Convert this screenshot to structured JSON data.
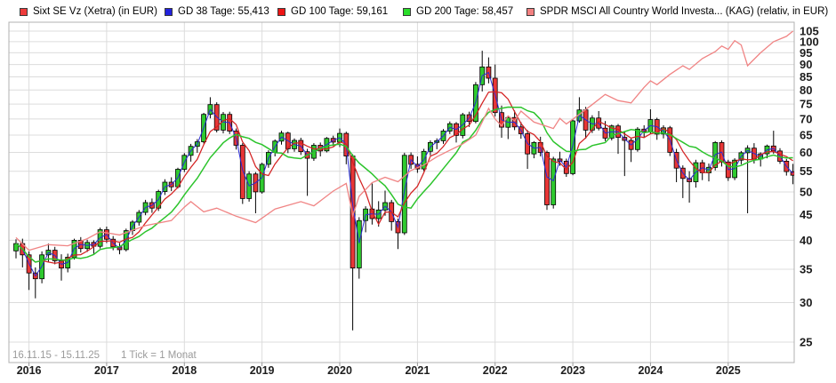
{
  "legend": {
    "items": [
      {
        "label": "Sixt SE Vz (Xetra) (in EUR)",
        "swatch_fill": "#ee3b3b",
        "swatch_border": "#3a3a3a"
      },
      {
        "label": "GD 38 Tage: 55,413",
        "swatch_fill": "#2222dd",
        "swatch_border": "#3a3a3a"
      },
      {
        "label": "GD 100 Tage: 59,161",
        "swatch_fill": "#ee1515",
        "swatch_border": "#3a3a3a"
      },
      {
        "label": "GD 200 Tage: 58,457",
        "swatch_fill": "#2add2a",
        "swatch_border": "#3a3a3a"
      },
      {
        "label": "SPDR MSCI All Country World Investa... (KAG) (relativ, in EUR)",
        "swatch_fill": "#f28080",
        "swatch_border": "#3a3a3a"
      }
    ]
  },
  "footer": {
    "range_text": "16.11.15 - 15.11.25",
    "tick_text": "1 Tick = 1 Monat"
  },
  "chart_data": {
    "type": "candlestick",
    "title": "Sixt SE Vz (Xetra) (in EUR)",
    "scale": "log",
    "x_unit": "1 candle = 1 month",
    "period_start": "2015-11",
    "period_end": "2025-11",
    "grid": true,
    "y_axis_side": "right",
    "y_ticks": [
      25,
      30,
      35,
      40,
      45,
      50,
      55,
      60,
      65,
      70,
      75,
      80,
      85,
      90,
      95,
      100,
      105
    ],
    "ylim": [
      24.5,
      107
    ],
    "x_ticks": [
      {
        "label": "2016",
        "month_index": 2
      },
      {
        "label": "2017",
        "month_index": 14
      },
      {
        "label": "2018",
        "month_index": 26
      },
      {
        "label": "2019",
        "month_index": 38
      },
      {
        "label": "2020",
        "month_index": 50
      },
      {
        "label": "2021",
        "month_index": 62
      },
      {
        "label": "2022",
        "month_index": 74
      },
      {
        "label": "2023",
        "month_index": 86
      },
      {
        "label": "2024",
        "month_index": 98
      },
      {
        "label": "2025",
        "month_index": 110
      }
    ],
    "candles_ohlc": [
      [
        38.1,
        40.2,
        36.8,
        39.4
      ],
      [
        39.4,
        40.3,
        35.3,
        37.4
      ],
      [
        37.4,
        38.0,
        31.8,
        34.4
      ],
      [
        34.4,
        35.3,
        30.6,
        33.5
      ],
      [
        33.5,
        38.0,
        32.8,
        37.4
      ],
      [
        37.4,
        39.4,
        36.2,
        38.2
      ],
      [
        38.2,
        38.8,
        35.8,
        36.4
      ],
      [
        36.4,
        37.5,
        33.2,
        35.2
      ],
      [
        35.2,
        37.6,
        34.5,
        37.0
      ],
      [
        37.0,
        40.3,
        36.6,
        40.0
      ],
      [
        40.0,
        40.6,
        37.8,
        38.5
      ],
      [
        38.5,
        40.1,
        37.9,
        39.6
      ],
      [
        39.6,
        40.0,
        37.6,
        38.9
      ],
      [
        38.9,
        42.4,
        38.5,
        42.0
      ],
      [
        42.0,
        42.6,
        39.5,
        40.2
      ],
      [
        40.2,
        40.8,
        38.2,
        38.8
      ],
      [
        38.8,
        39.5,
        37.5,
        38.3
      ],
      [
        38.3,
        42.2,
        38.0,
        41.8
      ],
      [
        41.8,
        43.9,
        41.0,
        43.5
      ],
      [
        43.5,
        46.0,
        42.8,
        45.5
      ],
      [
        45.5,
        48.2,
        44.9,
        47.6
      ],
      [
        47.6,
        48.5,
        45.4,
        46.4
      ],
      [
        46.4,
        50.5,
        45.8,
        50.1
      ],
      [
        50.1,
        53.0,
        49.3,
        52.3
      ],
      [
        52.3,
        53.5,
        50.2,
        51.2
      ],
      [
        51.2,
        55.9,
        50.8,
        55.5
      ],
      [
        55.5,
        59.8,
        54.8,
        59.2
      ],
      [
        59.2,
        62.4,
        57.5,
        61.7
      ],
      [
        61.7,
        63.8,
        59.9,
        63.0
      ],
      [
        63.0,
        72.0,
        62.5,
        71.5
      ],
      [
        71.5,
        77.4,
        70.2,
        74.8
      ],
      [
        74.8,
        75.6,
        65.8,
        66.5
      ],
      [
        66.5,
        72.3,
        65.5,
        71.5
      ],
      [
        71.5,
        72.4,
        65.3,
        66.2
      ],
      [
        66.2,
        67.0,
        60.8,
        62.0
      ],
      [
        62.0,
        62.6,
        47.3,
        48.5
      ],
      [
        48.5,
        55.0,
        47.8,
        54.3
      ],
      [
        54.3,
        54.8,
        45.3,
        50.0
      ],
      [
        50.0,
        57.2,
        49.6,
        56.8
      ],
      [
        56.8,
        60.6,
        55.9,
        60.0
      ],
      [
        60.0,
        63.7,
        58.9,
        63.2
      ],
      [
        63.2,
        66.3,
        62.2,
        65.6
      ],
      [
        65.6,
        66.0,
        59.8,
        61.0
      ],
      [
        61.0,
        64.0,
        60.2,
        63.4
      ],
      [
        63.4,
        64.2,
        59.3,
        60.2
      ],
      [
        60.2,
        61.0,
        49.1,
        58.4
      ],
      [
        58.4,
        62.6,
        57.7,
        62.0
      ],
      [
        62.0,
        62.8,
        58.9,
        60.4
      ],
      [
        60.4,
        64.4,
        60.0,
        64.0
      ],
      [
        64.0,
        64.8,
        61.8,
        62.9
      ],
      [
        62.9,
        67.0,
        61.5,
        65.5
      ],
      [
        65.5,
        66.0,
        56.8,
        59.0
      ],
      [
        59.0,
        59.5,
        26.4,
        35.2
      ],
      [
        35.2,
        44.5,
        33.5,
        43.8
      ],
      [
        43.8,
        46.8,
        41.5,
        46.2
      ],
      [
        46.2,
        52.0,
        43.0,
        44.2
      ],
      [
        44.2,
        47.9,
        42.6,
        46.0
      ],
      [
        46.0,
        50.3,
        44.8,
        47.6
      ],
      [
        47.6,
        48.2,
        41.8,
        43.6
      ],
      [
        43.6,
        44.2,
        38.4,
        41.4
      ],
      [
        41.4,
        59.9,
        41.0,
        59.2
      ],
      [
        59.2,
        60.0,
        55.6,
        56.8
      ],
      [
        56.8,
        58.9,
        54.6,
        55.6
      ],
      [
        55.6,
        61.0,
        55.0,
        60.3
      ],
      [
        60.3,
        63.4,
        59.2,
        62.8
      ],
      [
        62.8,
        64.0,
        60.9,
        63.3
      ],
      [
        63.3,
        66.8,
        62.4,
        66.2
      ],
      [
        66.2,
        69.2,
        65.3,
        68.5
      ],
      [
        68.5,
        69.0,
        62.8,
        64.9
      ],
      [
        64.9,
        72.0,
        64.0,
        71.4
      ],
      [
        71.4,
        72.4,
        67.5,
        69.2
      ],
      [
        69.2,
        83.0,
        68.6,
        82.0
      ],
      [
        82.0,
        95.9,
        79.5,
        89.0
      ],
      [
        89.0,
        93.0,
        82.5,
        84.5
      ],
      [
        84.5,
        90.0,
        70.8,
        72.1
      ],
      [
        72.1,
        74.5,
        64.2,
        67.4
      ],
      [
        67.4,
        71.0,
        63.8,
        70.5
      ],
      [
        70.5,
        72.8,
        66.5,
        67.5
      ],
      [
        67.5,
        69.0,
        63.9,
        65.4
      ],
      [
        65.4,
        66.5,
        55.6,
        59.6
      ],
      [
        59.6,
        63.2,
        58.4,
        62.8
      ],
      [
        62.8,
        64.5,
        58.9,
        60.0
      ],
      [
        60.0,
        60.5,
        46.0,
        47.1
      ],
      [
        47.1,
        58.8,
        46.3,
        58.2
      ],
      [
        58.2,
        60.2,
        56.4,
        57.6
      ],
      [
        57.6,
        58.3,
        53.6,
        54.4
      ],
      [
        54.4,
        70.0,
        54.0,
        69.4
      ],
      [
        69.4,
        77.4,
        68.8,
        73.0
      ],
      [
        73.0,
        74.0,
        63.9,
        66.5
      ],
      [
        66.5,
        71.2,
        65.6,
        70.3
      ],
      [
        70.3,
        72.6,
        66.4,
        67.1
      ],
      [
        67.1,
        69.3,
        63.2,
        64.1
      ],
      [
        64.1,
        68.2,
        63.4,
        67.8
      ],
      [
        67.8,
        68.4,
        59.6,
        64.3
      ],
      [
        64.3,
        66.0,
        53.8,
        63.4
      ],
      [
        63.4,
        64.0,
        57.4,
        60.8
      ],
      [
        60.8,
        67.4,
        60.2,
        66.8
      ],
      [
        66.8,
        68.0,
        64.2,
        66.0
      ],
      [
        66.0,
        73.2,
        65.4,
        69.8
      ],
      [
        69.8,
        70.4,
        63.6,
        65.3
      ],
      [
        65.3,
        68.0,
        64.0,
        67.2
      ],
      [
        67.2,
        67.8,
        59.0,
        60.0
      ],
      [
        60.0,
        61.0,
        52.3,
        55.8
      ],
      [
        55.8,
        56.5,
        48.6,
        53.2
      ],
      [
        53.2,
        55.0,
        47.6,
        52.4
      ],
      [
        52.4,
        58.0,
        51.0,
        57.2
      ],
      [
        57.2,
        58.0,
        52.8,
        54.6
      ],
      [
        54.6,
        57.0,
        52.5,
        56.0
      ],
      [
        56.0,
        63.2,
        55.2,
        62.8
      ],
      [
        62.8,
        63.4,
        56.2,
        57.4
      ],
      [
        57.4,
        58.0,
        52.6,
        53.4
      ],
      [
        53.4,
        58.4,
        52.8,
        57.9
      ],
      [
        57.9,
        60.4,
        56.8,
        59.9
      ],
      [
        59.9,
        62.0,
        45.3,
        61.2
      ],
      [
        61.2,
        62.6,
        57.0,
        58.2
      ],
      [
        58.2,
        60.0,
        56.2,
        59.6
      ],
      [
        59.6,
        62.2,
        58.4,
        61.8
      ],
      [
        61.8,
        66.3,
        59.6,
        60.4
      ],
      [
        60.4,
        61.2,
        56.9,
        57.6
      ],
      [
        57.6,
        58.2,
        53.9,
        54.9
      ],
      [
        54.9,
        56.9,
        51.8,
        54.0
      ]
    ],
    "moving_averages": [
      {
        "name": "GD 38 Tage",
        "current_value": "55,413",
        "window_months": 2,
        "color": "#2a2ad4"
      },
      {
        "name": "GD 100 Tage",
        "current_value": "59,161",
        "window_months": 5,
        "color": "#d42222"
      },
      {
        "name": "GD 200 Tage",
        "current_value": "58,457",
        "window_months": 10,
        "color": "#2cc42c"
      }
    ],
    "benchmark": {
      "name": "SPDR MSCI All Country World Investa... (KAG) (relativ, in EUR)",
      "color": "#f08484",
      "points_month_value": [
        [
          0,
          40.5
        ],
        [
          2,
          38.2
        ],
        [
          5,
          39.2
        ],
        [
          8,
          39.0
        ],
        [
          11,
          40.3
        ],
        [
          13,
          41.6
        ],
        [
          16,
          41.0
        ],
        [
          20,
          42.8
        ],
        [
          24,
          43.8
        ],
        [
          26,
          46.6
        ],
        [
          27,
          47.8
        ],
        [
          29,
          45.6
        ],
        [
          31,
          46.4
        ],
        [
          34,
          44.7
        ],
        [
          37,
          43.4
        ],
        [
          40,
          46.2
        ],
        [
          44,
          47.8
        ],
        [
          46,
          46.9
        ],
        [
          49,
          50.2
        ],
        [
          51,
          52.0
        ],
        [
          52,
          44.8
        ],
        [
          53,
          49.0
        ],
        [
          55,
          52.2
        ],
        [
          57,
          53.5
        ],
        [
          59,
          52.4
        ],
        [
          61,
          55.2
        ],
        [
          63,
          56.6
        ],
        [
          65,
          58.8
        ],
        [
          67,
          60.6
        ],
        [
          69,
          62.4
        ],
        [
          71,
          65.0
        ],
        [
          72,
          69.0
        ],
        [
          73,
          73.5
        ],
        [
          74,
          70.0
        ],
        [
          75,
          67.8
        ],
        [
          76,
          71.0
        ],
        [
          77,
          69.4
        ],
        [
          78,
          72.6
        ],
        [
          80,
          69.0
        ],
        [
          83,
          67.0
        ],
        [
          84,
          70.2
        ],
        [
          85,
          68.4
        ],
        [
          87,
          71.5
        ],
        [
          89,
          74.8
        ],
        [
          91,
          78.4
        ],
        [
          93,
          76.2
        ],
        [
          95,
          75.4
        ],
        [
          97,
          81.0
        ],
        [
          98,
          83.5
        ],
        [
          99,
          82.0
        ],
        [
          101,
          86.0
        ],
        [
          103,
          89.5
        ],
        [
          104,
          88.0
        ],
        [
          106,
          92.5
        ],
        [
          108,
          95.5
        ],
        [
          109,
          98.0
        ],
        [
          110,
          96.5
        ],
        [
          111,
          100.5
        ],
        [
          112,
          98.5
        ],
        [
          113,
          89.5
        ],
        [
          115,
          95.0
        ],
        [
          117,
          100.0
        ],
        [
          119,
          102.5
        ],
        [
          120,
          105.0
        ]
      ]
    },
    "colors": {
      "candle_up": "#2fca2f",
      "candle_down": "#e83636",
      "candle_border": "#000000",
      "wick": "#000000",
      "grid": "#dcdcdc",
      "frame": "#b0b0b0",
      "axis_text": "#1d1d1d",
      "background": "#ffffff"
    }
  }
}
